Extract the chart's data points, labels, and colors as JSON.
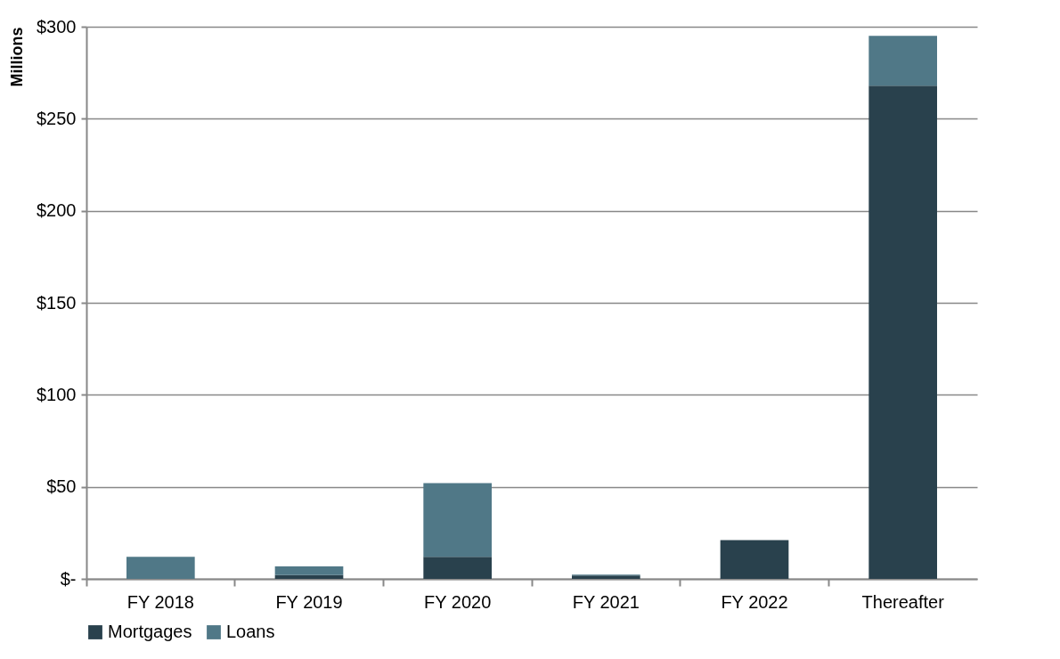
{
  "chart_data": {
    "type": "bar",
    "stacked": true,
    "ylabel": "Millions",
    "categories": [
      "FY 2018",
      "FY 2019",
      "FY 2020",
      "FY 2021",
      "FY 2022",
      "Thereafter"
    ],
    "series": [
      {
        "name": "Mortgages",
        "color": "#29414d",
        "values": [
          0,
          2,
          12,
          1.8,
          21,
          268
        ]
      },
      {
        "name": "Loans",
        "color": "#507887",
        "values": [
          12,
          4.8,
          40,
          0.5,
          0,
          27
        ]
      }
    ],
    "ylim": [
      0,
      300
    ],
    "yticks": [
      {
        "value": 0,
        "label": "$-"
      },
      {
        "value": 50,
        "label": "$50"
      },
      {
        "value": 100,
        "label": "$100"
      },
      {
        "value": 150,
        "label": "$150"
      },
      {
        "value": 200,
        "label": "$200"
      },
      {
        "value": 250,
        "label": "$250"
      },
      {
        "value": 300,
        "label": "$300"
      }
    ],
    "grid": "y",
    "legend": "bottom"
  }
}
